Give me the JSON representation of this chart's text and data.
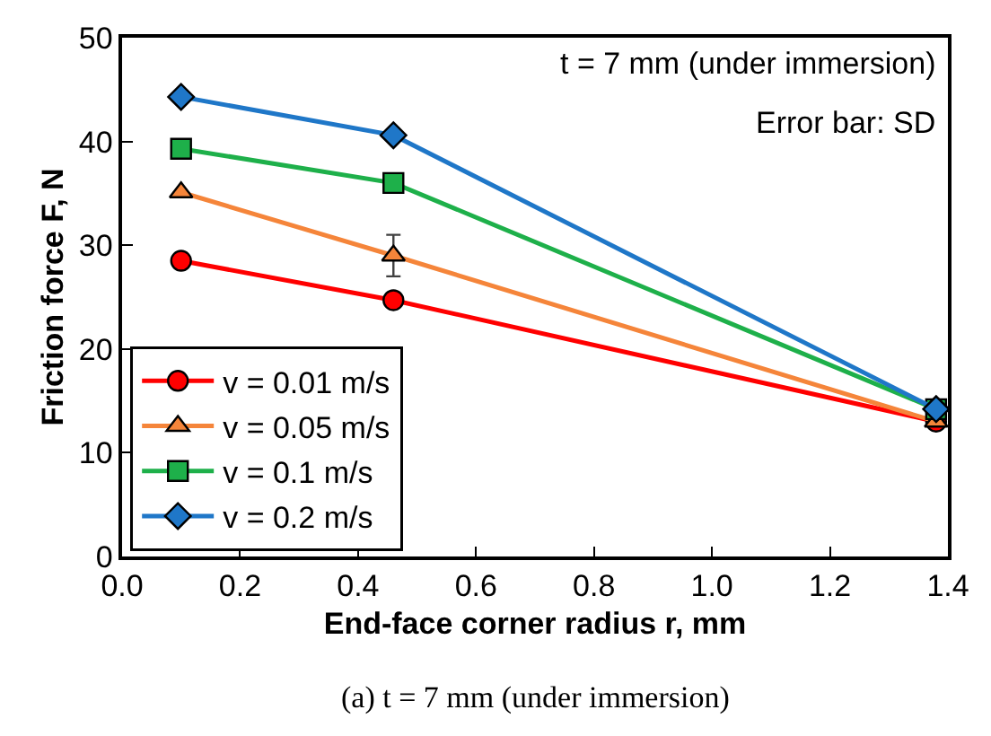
{
  "chart_data": {
    "type": "line",
    "xlabel": "End-face corner radius r, mm",
    "ylabel": "Friction force F, N",
    "x": [
      0.1,
      0.46,
      1.38
    ],
    "series": [
      {
        "name": "v = 0.01 m/s",
        "color": "#ff0000",
        "marker": "circle",
        "values": [
          28.5,
          24.7,
          13.0
        ]
      },
      {
        "name": "v = 0.05 m/s",
        "color": "#f5853a",
        "marker": "triangle",
        "values": [
          35.1,
          29.0,
          13.0
        ],
        "errors": [
          null,
          2.0,
          null
        ]
      },
      {
        "name": "v = 0.1 m/s",
        "color": "#1eb04a",
        "marker": "square",
        "values": [
          39.3,
          36.0,
          14.2
        ]
      },
      {
        "name": "v = 0.2 m/s",
        "color": "#1f77c8",
        "marker": "diamond",
        "values": [
          44.3,
          40.6,
          14.2
        ]
      }
    ],
    "xlim": [
      0.0,
      1.4
    ],
    "xticks": [
      {
        "value": 0.0,
        "label": "0.0"
      },
      0.2,
      0.4,
      0.6,
      0.8,
      {
        "value": 1.0,
        "label": "1.0"
      },
      1.2,
      1.4
    ],
    "ylim": [
      0,
      50
    ],
    "yticks": [
      0,
      10,
      20,
      30,
      40,
      50
    ],
    "legend": "bottom left",
    "annotations": [
      "t = 7 mm (under immersion)",
      "Error bar: SD",
      "(a) t = 7 mm (under immersion)"
    ]
  }
}
